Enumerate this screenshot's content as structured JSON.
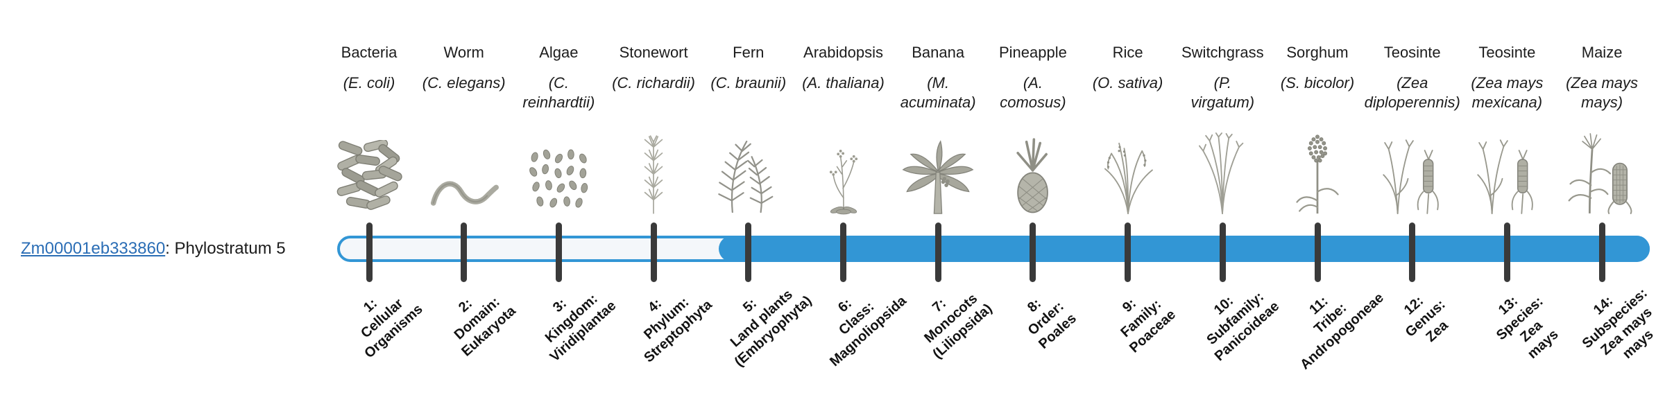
{
  "gene": {
    "id": "Zm00001eb333860",
    "annotation": ": Phylostratum 5"
  },
  "timeline": {
    "bar_color": "#3296d5",
    "track_fill": "#f4f7fa",
    "tick_color": "#3a3a3a",
    "filled_from_stratum": 5
  },
  "organisms": [
    {
      "name": "Bacteria",
      "scientific": "(E. coli)",
      "icon": "bacteria-icon",
      "stratum": "1:\nCellular\nOrganisms"
    },
    {
      "name": "Worm",
      "scientific": "(C. elegans)",
      "icon": "worm-icon",
      "stratum": "2:\nDomain:\nEukaryota"
    },
    {
      "name": "Algae",
      "scientific": "(C.\nreinhardtii)",
      "icon": "algae-icon",
      "stratum": "3:\nKingdom:\nViridiplantae"
    },
    {
      "name": "Stonewort",
      "scientific": "(C. richardii)",
      "icon": "stonewort-icon",
      "stratum": "4:\nPhylum:\nStreptophyta"
    },
    {
      "name": "Fern",
      "scientific": "(C. braunii)",
      "icon": "fern-icon",
      "stratum": "5:\nLand plants\n(Embryophyta)"
    },
    {
      "name": "Arabidopsis",
      "scientific": "(A. thaliana)",
      "icon": "arabidopsis-icon",
      "stratum": "6:\nClass:\nMagnoliopsida"
    },
    {
      "name": "Banana",
      "scientific": "(M.\nacuminata)",
      "icon": "banana-icon",
      "stratum": "7:\nMonocots\n(Liliopsida)"
    },
    {
      "name": "Pineapple",
      "scientific": "(A.\ncomosus)",
      "icon": "pineapple-icon",
      "stratum": "8:\nOrder:\nPoales"
    },
    {
      "name": "Rice",
      "scientific": "(O. sativa)",
      "icon": "rice-icon",
      "stratum": "9:\nFamily:\nPoaceae"
    },
    {
      "name": "Switchgrass",
      "scientific": "(P.\nvirgatum)",
      "icon": "switchgrass-icon",
      "stratum": "10:\nSubfamily:\nPanicoideae"
    },
    {
      "name": "Sorghum",
      "scientific": "(S. bicolor)",
      "icon": "sorghum-icon",
      "stratum": "11:\nTribe:\nAndropogoneae"
    },
    {
      "name": "Teosinte",
      "scientific": "(Zea\ndiploperennis)",
      "icon": "teosinte-icon",
      "stratum": "12:\nGenus:\nZea"
    },
    {
      "name": "Teosinte",
      "scientific": "(Zea mays\nmexicana)",
      "icon": "teosinte-icon",
      "stratum": "13:\nSpecies:\nZea\nmays"
    },
    {
      "name": "Maize",
      "scientific": "(Zea mays\nmays)",
      "icon": "maize-icon",
      "stratum": "14:\nSubspecies:\nZea mays\nmays"
    }
  ]
}
